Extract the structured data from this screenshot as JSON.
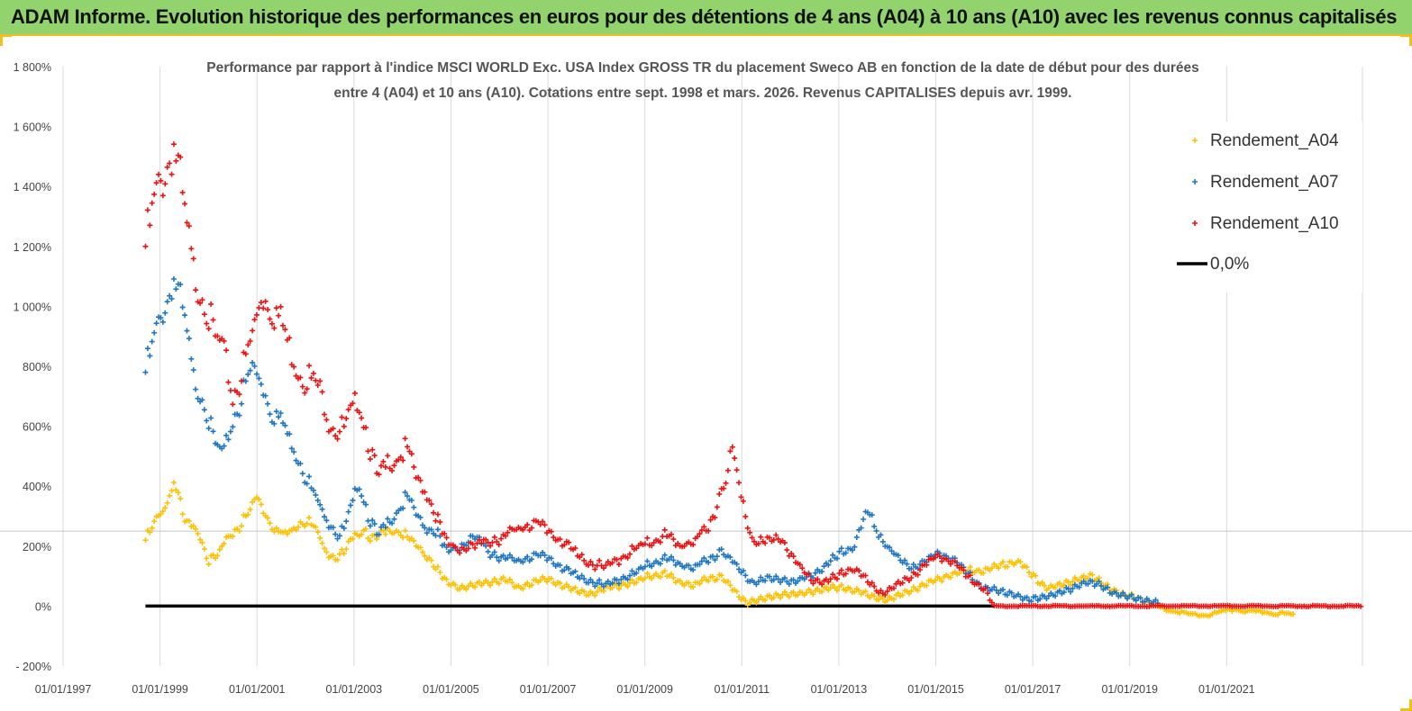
{
  "banner": {
    "title": "ADAM Informe. Evolution historique des performances en euros pour des détentions de 4 ans (A04) à 10 ans (A10) avec les revenus connus capitalisés"
  },
  "colors": {
    "banner_bg": "#92d36e",
    "banner_border": "#f0c020",
    "a04": "#ffc000",
    "a07": "#1f77c4",
    "a10": "#ee1111",
    "zero": "#000000",
    "grid": "#d9d9d9"
  },
  "chart_data": {
    "type": "scatter",
    "title_line1": "Performance par rapport à l'indice MSCI WORLD Exc. USA Index GROSS TR  du placement Sweco AB en fonction de la date de début pour des durées",
    "title_line2": "entre 4 (A04) et 10 ans (A10).  Cotations entre sept. 1998 et mars. 2026. Revenus CAPITALISES depuis avr. 1999.",
    "y_ticks": [
      "1 800%",
      "1 600%",
      "1 400%",
      "1 200%",
      "1 000%",
      "800%",
      "600%",
      "400%",
      "200%",
      "0%",
      "- 200%"
    ],
    "x_ticks": [
      "01/01/1997",
      "01/01/1999",
      "01/01/2001",
      "01/01/2003",
      "01/01/2005",
      "01/01/2007",
      "01/01/2009",
      "01/01/2011",
      "01/01/2013",
      "01/01/2015",
      "01/01/2017",
      "01/01/2019",
      "01/01/2021"
    ],
    "ylim": [
      -200,
      1800
    ],
    "xlim": [
      1997.0,
      2023.8
    ],
    "grid": "vertical",
    "legend_position": "top-right",
    "series": [
      {
        "name": "Rendement_A04",
        "points": [
          [
            1998.7,
            220
          ],
          [
            1998.9,
            280
          ],
          [
            1999.1,
            330
          ],
          [
            1999.3,
            420
          ],
          [
            1999.5,
            280
          ],
          [
            1999.8,
            250
          ],
          [
            2000.0,
            150
          ],
          [
            2000.2,
            170
          ],
          [
            2000.4,
            230
          ],
          [
            2000.6,
            260
          ],
          [
            2000.8,
            300
          ],
          [
            2001.0,
            370
          ],
          [
            2001.2,
            300
          ],
          [
            2001.4,
            250
          ],
          [
            2001.6,
            240
          ],
          [
            2001.8,
            270
          ],
          [
            2002.0,
            290
          ],
          [
            2002.2,
            260
          ],
          [
            2002.4,
            190
          ],
          [
            2002.6,
            160
          ],
          [
            2002.8,
            180
          ],
          [
            2003.0,
            230
          ],
          [
            2003.2,
            260
          ],
          [
            2003.4,
            220
          ],
          [
            2003.6,
            240
          ],
          [
            2003.8,
            260
          ],
          [
            2004.0,
            240
          ],
          [
            2004.3,
            200
          ],
          [
            2004.6,
            150
          ],
          [
            2004.9,
            80
          ],
          [
            2005.2,
            60
          ],
          [
            2005.5,
            70
          ],
          [
            2005.8,
            80
          ],
          [
            2006.1,
            90
          ],
          [
            2006.4,
            60
          ],
          [
            2006.7,
            80
          ],
          [
            2007.0,
            90
          ],
          [
            2007.3,
            70
          ],
          [
            2007.6,
            50
          ],
          [
            2007.9,
            40
          ],
          [
            2008.2,
            60
          ],
          [
            2008.5,
            70
          ],
          [
            2008.8,
            80
          ],
          [
            2009.1,
            100
          ],
          [
            2009.4,
            110
          ],
          [
            2009.7,
            80
          ],
          [
            2010.0,
            70
          ],
          [
            2010.3,
            90
          ],
          [
            2010.6,
            100
          ],
          [
            2010.9,
            40
          ],
          [
            2011.1,
            10
          ],
          [
            2011.3,
            20
          ],
          [
            2011.6,
            30
          ],
          [
            2011.9,
            40
          ],
          [
            2012.2,
            40
          ],
          [
            2012.5,
            50
          ],
          [
            2012.8,
            60
          ],
          [
            2013.1,
            60
          ],
          [
            2013.4,
            50
          ],
          [
            2013.7,
            30
          ],
          [
            2014.0,
            20
          ],
          [
            2014.3,
            40
          ],
          [
            2014.6,
            60
          ],
          [
            2014.9,
            80
          ],
          [
            2015.2,
            100
          ],
          [
            2015.5,
            110
          ],
          [
            2015.8,
            120
          ],
          [
            2016.1,
            120
          ],
          [
            2016.4,
            140
          ],
          [
            2016.7,
            150
          ],
          [
            2017.0,
            100
          ],
          [
            2017.3,
            60
          ],
          [
            2017.6,
            70
          ],
          [
            2017.9,
            90
          ],
          [
            2018.2,
            100
          ],
          [
            2018.5,
            70
          ],
          [
            2018.8,
            40
          ],
          [
            2019.1,
            30
          ],
          [
            2019.4,
            10
          ],
          [
            2019.7,
            -10
          ],
          [
            2020.0,
            -20
          ],
          [
            2020.3,
            -30
          ],
          [
            2020.6,
            -30
          ],
          [
            2020.9,
            -20
          ],
          [
            2021.2,
            -10
          ],
          [
            2021.5,
            -20
          ],
          [
            2021.8,
            -20
          ],
          [
            2022.1,
            -25
          ],
          [
            2022.4,
            -30
          ]
        ]
      },
      {
        "name": "Rendement_A07",
        "points": [
          [
            1998.7,
            780
          ],
          [
            1998.9,
            900
          ],
          [
            1999.1,
            1000
          ],
          [
            1999.3,
            1100
          ],
          [
            1999.5,
            950
          ],
          [
            1999.7,
            750
          ],
          [
            1999.9,
            700
          ],
          [
            2000.1,
            550
          ],
          [
            2000.3,
            500
          ],
          [
            2000.5,
            620
          ],
          [
            2000.7,
            700
          ],
          [
            2000.9,
            800
          ],
          [
            2001.1,
            750
          ],
          [
            2001.3,
            650
          ],
          [
            2001.5,
            620
          ],
          [
            2001.7,
            550
          ],
          [
            2001.9,
            480
          ],
          [
            2002.1,
            400
          ],
          [
            2002.3,
            330
          ],
          [
            2002.5,
            280
          ],
          [
            2002.7,
            230
          ],
          [
            2002.9,
            300
          ],
          [
            2003.1,
            420
          ],
          [
            2003.3,
            300
          ],
          [
            2003.5,
            230
          ],
          [
            2003.7,
            280
          ],
          [
            2003.9,
            320
          ],
          [
            2004.1,
            360
          ],
          [
            2004.3,
            300
          ],
          [
            2004.5,
            260
          ],
          [
            2004.7,
            250
          ],
          [
            2004.9,
            180
          ],
          [
            2005.2,
            200
          ],
          [
            2005.5,
            230
          ],
          [
            2005.8,
            180
          ],
          [
            2006.1,
            160
          ],
          [
            2006.4,
            150
          ],
          [
            2006.7,
            170
          ],
          [
            2007.0,
            160
          ],
          [
            2007.3,
            130
          ],
          [
            2007.6,
            100
          ],
          [
            2007.9,
            80
          ],
          [
            2008.2,
            70
          ],
          [
            2008.5,
            90
          ],
          [
            2008.8,
            110
          ],
          [
            2009.1,
            140
          ],
          [
            2009.4,
            160
          ],
          [
            2009.7,
            140
          ],
          [
            2010.0,
            130
          ],
          [
            2010.3,
            150
          ],
          [
            2010.6,
            190
          ],
          [
            2010.9,
            130
          ],
          [
            2011.2,
            80
          ],
          [
            2011.5,
            90
          ],
          [
            2011.8,
            90
          ],
          [
            2012.1,
            80
          ],
          [
            2012.4,
            100
          ],
          [
            2012.7,
            130
          ],
          [
            2013.0,
            170
          ],
          [
            2013.3,
            200
          ],
          [
            2013.6,
            310
          ],
          [
            2013.9,
            220
          ],
          [
            2014.2,
            160
          ],
          [
            2014.5,
            130
          ],
          [
            2014.8,
            150
          ],
          [
            2015.1,
            180
          ],
          [
            2015.4,
            150
          ],
          [
            2015.7,
            100
          ],
          [
            2016.0,
            60
          ],
          [
            2016.3,
            50
          ],
          [
            2016.6,
            40
          ],
          [
            2016.9,
            20
          ],
          [
            2017.2,
            30
          ],
          [
            2017.5,
            40
          ],
          [
            2017.8,
            60
          ],
          [
            2018.1,
            80
          ],
          [
            2018.4,
            70
          ],
          [
            2018.7,
            40
          ],
          [
            2019.0,
            30
          ],
          [
            2019.3,
            20
          ],
          [
            2019.6,
            10
          ]
        ]
      },
      {
        "name": "Rendement_A10",
        "points": [
          [
            1998.7,
            1200
          ],
          [
            1998.9,
            1350
          ],
          [
            1999.1,
            1450
          ],
          [
            1999.3,
            1550
          ],
          [
            1999.5,
            1300
          ],
          [
            1999.7,
            1100
          ],
          [
            1999.9,
            1050
          ],
          [
            2000.1,
            900
          ],
          [
            2000.3,
            850
          ],
          [
            2000.5,
            700
          ],
          [
            2000.7,
            780
          ],
          [
            2000.9,
            900
          ],
          [
            2001.1,
            1050
          ],
          [
            2001.3,
            1000
          ],
          [
            2001.5,
            950
          ],
          [
            2001.7,
            850
          ],
          [
            2001.9,
            780
          ],
          [
            2002.1,
            760
          ],
          [
            2002.3,
            720
          ],
          [
            2002.5,
            620
          ],
          [
            2002.7,
            580
          ],
          [
            2002.9,
            620
          ],
          [
            2003.1,
            700
          ],
          [
            2003.3,
            550
          ],
          [
            2003.5,
            420
          ],
          [
            2003.7,
            480
          ],
          [
            2003.9,
            500
          ],
          [
            2004.1,
            520
          ],
          [
            2004.3,
            420
          ],
          [
            2004.5,
            380
          ],
          [
            2004.7,
            300
          ],
          [
            2004.9,
            210
          ],
          [
            2005.2,
            190
          ],
          [
            2005.5,
            200
          ],
          [
            2005.8,
            220
          ],
          [
            2006.1,
            230
          ],
          [
            2006.4,
            260
          ],
          [
            2006.7,
            280
          ],
          [
            2007.0,
            250
          ],
          [
            2007.3,
            220
          ],
          [
            2007.6,
            170
          ],
          [
            2007.9,
            140
          ],
          [
            2008.2,
            130
          ],
          [
            2008.5,
            160
          ],
          [
            2008.8,
            190
          ],
          [
            2009.1,
            210
          ],
          [
            2009.4,
            240
          ],
          [
            2009.7,
            200
          ],
          [
            2010.0,
            220
          ],
          [
            2010.3,
            250
          ],
          [
            2010.6,
            400
          ],
          [
            2010.8,
            520
          ],
          [
            2011.0,
            350
          ],
          [
            2011.2,
            230
          ],
          [
            2011.5,
            210
          ],
          [
            2011.8,
            230
          ],
          [
            2012.1,
            150
          ],
          [
            2012.4,
            90
          ],
          [
            2012.7,
            80
          ],
          [
            2013.0,
            100
          ],
          [
            2013.3,
            130
          ],
          [
            2013.6,
            80
          ],
          [
            2013.9,
            40
          ],
          [
            2014.2,
            70
          ],
          [
            2014.5,
            100
          ],
          [
            2014.8,
            140
          ],
          [
            2015.1,
            170
          ],
          [
            2015.4,
            140
          ],
          [
            2015.7,
            90
          ],
          [
            2016.0,
            60
          ],
          [
            2016.2,
            0
          ],
          [
            2017.0,
            0
          ],
          [
            2018.0,
            0
          ],
          [
            2019.0,
            0
          ],
          [
            2020.0,
            0
          ],
          [
            2021.0,
            0
          ],
          [
            2022.0,
            0
          ],
          [
            2023.0,
            0
          ],
          [
            2023.8,
            0
          ]
        ]
      },
      {
        "name": "0,0%",
        "points": [
          [
            1998.7,
            0
          ],
          [
            2016.2,
            0
          ]
        ]
      }
    ]
  }
}
